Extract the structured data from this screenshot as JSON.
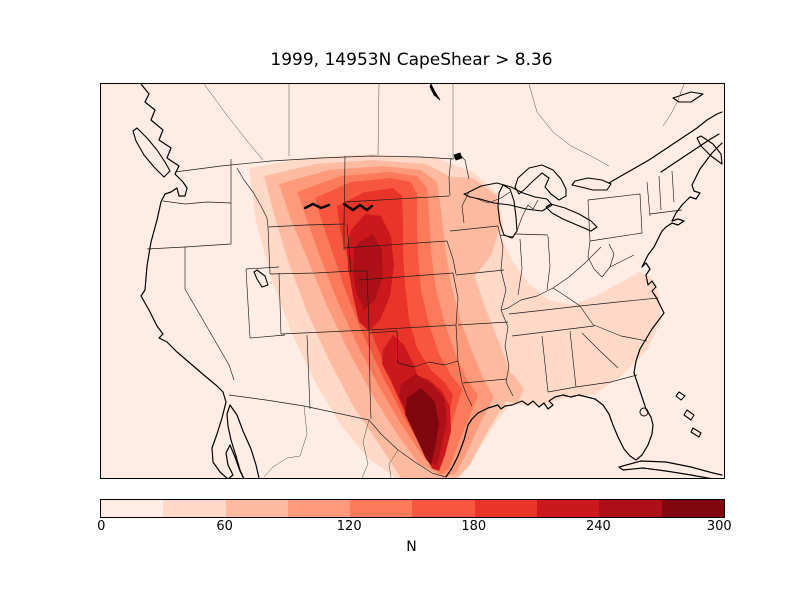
{
  "figure": {
    "title": "1999, 14953N CapeShear > 8.36",
    "background": "#ffffff"
  },
  "map": {
    "frame_color": "#000000",
    "outline_color": "#000000",
    "background_value_color": "#ffece4",
    "region": "Contiguous United States with southern Canada and northern Mexico"
  },
  "colorbar": {
    "unit_label": "N",
    "min": 0,
    "max": 300,
    "ticks": [
      "0",
      "60",
      "120",
      "180",
      "240",
      "300"
    ],
    "segment_colors": [
      "#ffece4",
      "#fed9c8",
      "#fcbba1",
      "#fc9a7b",
      "#fb7a5a",
      "#f6573e",
      "#e83429",
      "#cb181d",
      "#ad1117",
      "#800610"
    ]
  },
  "chart_data": {
    "type": "heatmap",
    "subtype": "filled-contour-map",
    "title": "1999, 14953N CapeShear > 8.36",
    "year": "1999",
    "threshold_label": "CapeShear > 8.36",
    "count_label": "14953N",
    "region": "Contiguous United States with southern Canada and northern Mexico",
    "colorbar_label": "N",
    "levels": [
      0,
      30,
      60,
      90,
      120,
      150,
      180,
      210,
      240,
      270,
      300
    ],
    "colors": [
      "#ffece4",
      "#fed9c8",
      "#fcbba1",
      "#fc9a7b",
      "#fb7a5a",
      "#f6573e",
      "#e83429",
      "#cb181d",
      "#ad1117",
      "#800610"
    ],
    "legend_position": "horizontal colorbar below map",
    "grid": false,
    "hotspots": [
      {
        "location": "South-central Texas near the Gulf coast",
        "peak_value": "270-300"
      },
      {
        "location": "Colorado-Nebraska border / High Plains",
        "peak_value": "240-270"
      },
      {
        "location": "Great Plains ridge from North Dakota through Kansas and Oklahoma into Texas",
        "value_range": "90-240"
      },
      {
        "location": "Upper Midwest (Iowa, Wisconsin, Illinois)",
        "value_range": "30-90"
      },
      {
        "location": "Louisiana / lower Mississippi valley",
        "value_range": "60-120"
      },
      {
        "location": "Southeast US (Tennessee to the Carolinas)",
        "value_range": "30-60"
      },
      {
        "location": "Western US, Ohio valley, Northeast, oceans",
        "value_range": "0-30"
      }
    ]
  }
}
